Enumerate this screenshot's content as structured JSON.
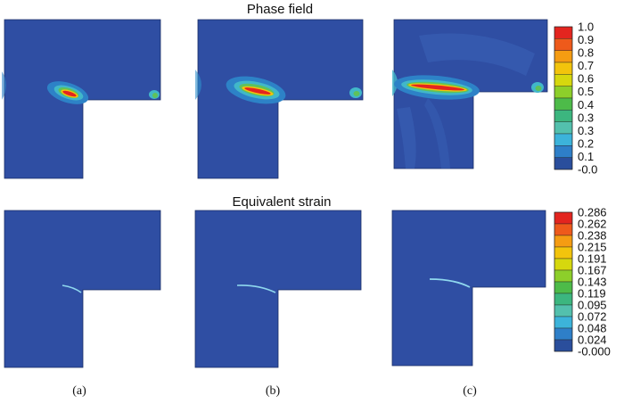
{
  "titles": {
    "phase": "Phase field",
    "strain": "Equivalent strain"
  },
  "captions": [
    "(a)",
    "(b)",
    "(c)"
  ],
  "legend_phase": {
    "labels": [
      "1.0",
      "0.9",
      "0.8",
      "0.7",
      "0.6",
      "0.5",
      "0.4",
      "0.3",
      "0.3",
      "0.2",
      "0.1",
      "-0.0"
    ],
    "colors": [
      "#e3251f",
      "#ee5a1b",
      "#f59c12",
      "#f2c40c",
      "#d6d80e",
      "#8dcf2a",
      "#4dbb49",
      "#3cb67f",
      "#53c0ad",
      "#3cb3da",
      "#2e7fc8",
      "#2a4e9c"
    ]
  },
  "legend_strain": {
    "labels": [
      "0.286",
      "0.262",
      "0.238",
      "0.215",
      "0.191",
      "0.167",
      "0.143",
      "0.119",
      "0.095",
      "0.072",
      "0.048",
      "0.024",
      "-0.000"
    ],
    "colors": [
      "#e3251f",
      "#ee5a1b",
      "#f59c12",
      "#f2c40c",
      "#d6d80e",
      "#8dcf2a",
      "#4dbb49",
      "#3cb67f",
      "#53c0ad",
      "#3cb3da",
      "#2e7fc8",
      "#2a4e9c"
    ]
  },
  "colors": {
    "field_bg": "#2f4ea3",
    "field_bg_light": "#3a63b8",
    "halo_outer": "#2d82c7",
    "halo_mid": "#41b7c9",
    "halo_inner": "#5fc25a",
    "crack_core": "#e3251f",
    "crack_edge": "#f2c40c",
    "strain_crack": "#8fd8ee"
  }
}
